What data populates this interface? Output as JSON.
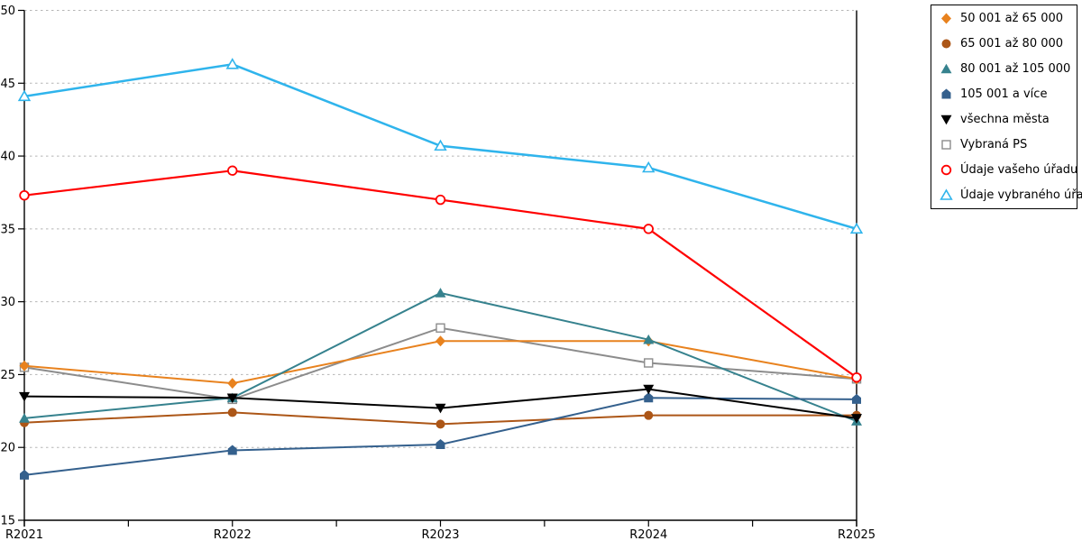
{
  "chart_data": {
    "type": "line",
    "title": "",
    "xlabel": "",
    "ylabel": "",
    "x_labels": [
      "R2021",
      "R2022",
      "R2023",
      "R2024",
      "R2025"
    ],
    "y_ticks": [
      15,
      20,
      25,
      30,
      35,
      40,
      45,
      50
    ],
    "ylim": [
      15,
      50
    ],
    "grid": "horizontal-dashed",
    "grid_color": "#b5b5b5",
    "axis_color": "#000000",
    "legend_position": "outside-right",
    "series": [
      {
        "name": "50 001 až 65 000",
        "marker": "diamond",
        "color": "#E8821E",
        "values": [
          25.6,
          24.4,
          27.3,
          27.3,
          24.7
        ]
      },
      {
        "name": "65 001 až 80 000",
        "marker": "circle",
        "color": "#AC5617",
        "values": [
          21.7,
          22.4,
          21.6,
          22.2,
          22.2
        ]
      },
      {
        "name": "80 001 až 105 000",
        "marker": "triangle-up",
        "color": "#36828E",
        "values": [
          22.0,
          23.4,
          30.6,
          27.4,
          21.8
        ]
      },
      {
        "name": "105 001 a více",
        "marker": "pentagon",
        "color": "#34608D",
        "values": [
          18.1,
          19.8,
          20.2,
          23.4,
          23.3
        ]
      },
      {
        "name": "všechna města",
        "marker": "triangle-down",
        "color": "#000000",
        "values": [
          23.5,
          23.4,
          22.7,
          24.0,
          22.0
        ]
      },
      {
        "name": "Vybraná PS",
        "marker": "square-open",
        "color": "#8C8C8C",
        "values": [
          25.5,
          23.3,
          28.2,
          25.8,
          24.7
        ]
      },
      {
        "name": "Údaje vašeho úřadu",
        "marker": "circle-open",
        "color": "#FF0000",
        "values": [
          37.3,
          39.0,
          37.0,
          35.0,
          24.8
        ]
      },
      {
        "name": "Údaje vybraného úřadu",
        "marker": "triangle-open",
        "color": "#2FB4EC",
        "values": [
          44.1,
          46.3,
          40.7,
          39.2,
          35.0
        ]
      }
    ]
  }
}
